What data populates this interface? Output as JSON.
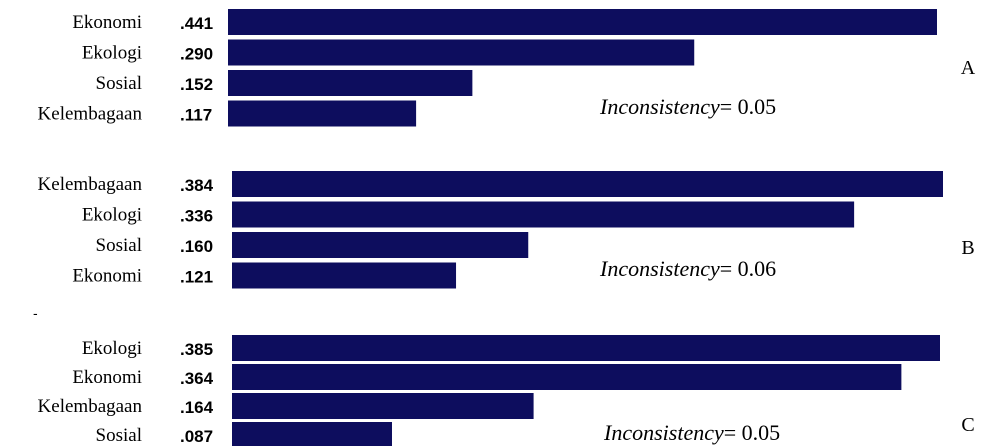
{
  "bar_color": "#0d0d5e",
  "chart_data": [
    {
      "type": "bar",
      "orientation": "horizontal",
      "panel_label": "A",
      "categories": [
        "Ekonomi",
        "Ekologi",
        "Sosial",
        "Kelembagaan"
      ],
      "values": [
        0.441,
        0.29,
        0.152,
        0.117
      ],
      "value_labels": [
        ".441",
        ".290",
        ".152",
        ".117"
      ],
      "inconsistency_label": "Inconsistency",
      "inconsistency_value": "= 0.05"
    },
    {
      "type": "bar",
      "orientation": "horizontal",
      "panel_label": "B",
      "categories": [
        "Kelembagaan",
        "Ekologi",
        "Sosial",
        "Ekonomi"
      ],
      "values": [
        0.384,
        0.336,
        0.16,
        0.121
      ],
      "value_labels": [
        ".384",
        ".336",
        ".160",
        ".121"
      ],
      "inconsistency_label": "Inconsistency",
      "inconsistency_value": "= 0.06"
    },
    {
      "type": "bar",
      "orientation": "horizontal",
      "panel_label": "C",
      "categories": [
        "Ekologi",
        "Ekonomi",
        "Kelembagaan",
        "Sosial"
      ],
      "values": [
        0.385,
        0.364,
        0.164,
        0.087
      ],
      "value_labels": [
        ".385",
        ".364",
        ".164",
        ".087"
      ],
      "inconsistency_label": "Inconsistency",
      "inconsistency_value": "= 0.05"
    }
  ]
}
